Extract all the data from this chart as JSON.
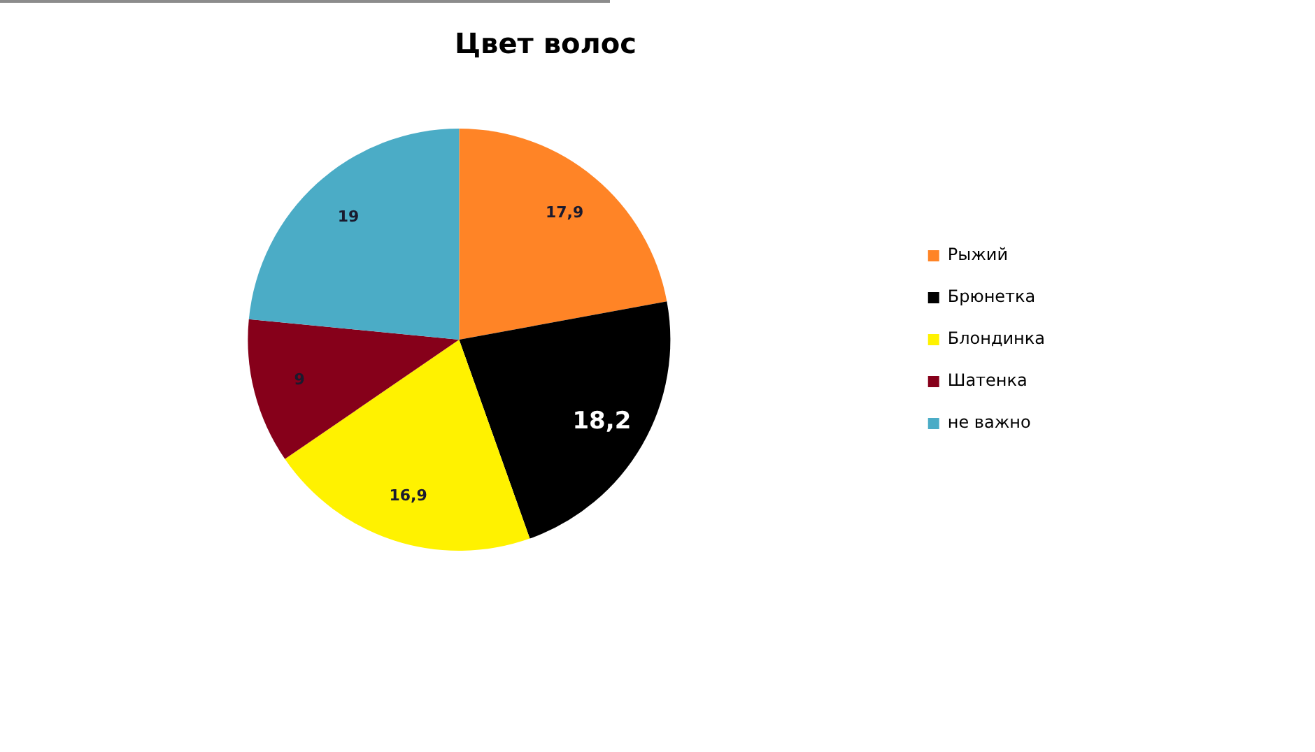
{
  "chart_data": {
    "type": "pie",
    "title": "Цвет волос",
    "categories": [
      "Рыжий",
      "Брюнетка",
      "Блондинка",
      "Шатенка",
      "не важно"
    ],
    "values": [
      17.9,
      18.2,
      16.9,
      9,
      19
    ],
    "colors": [
      "#ff8426",
      "#000000",
      "#fff200",
      "#86001a",
      "#4bacc6"
    ],
    "value_labels": [
      "17,9",
      "18,2",
      "16,9",
      "9",
      "19"
    ],
    "legend": "right"
  }
}
